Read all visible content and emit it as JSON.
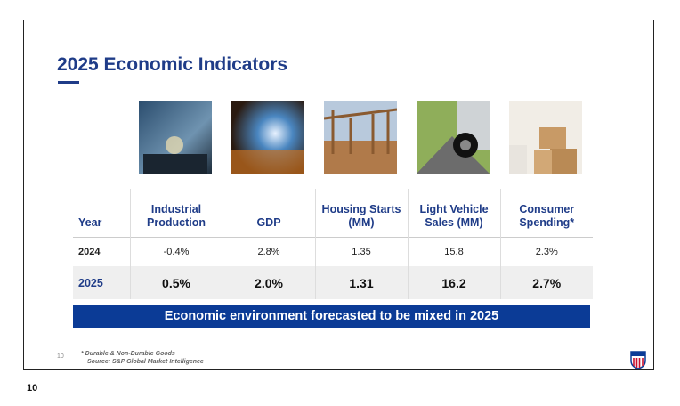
{
  "header": {
    "title": "2025 Economic Indicators"
  },
  "table": {
    "columns": [
      "Year",
      "Industrial Production",
      "GDP",
      "Housing Starts (MM)",
      "Light Vehicle Sales (MM)",
      "Consumer Spending*"
    ],
    "rows": [
      [
        "2024",
        "-0.4%",
        "2.8%",
        "1.35",
        "15.8",
        "2.3%"
      ],
      [
        "2025",
        "0.5%",
        "2.0%",
        "1.31",
        "16.2",
        "2.7%"
      ]
    ]
  },
  "banner": "Economic environment forecasted to be mixed in 2025",
  "slide_number": "10",
  "footnotes": [
    "* Durable & Non-Durable Goods",
    "Source:  S&P Global Market Intelligence"
  ],
  "page_number": "10"
}
